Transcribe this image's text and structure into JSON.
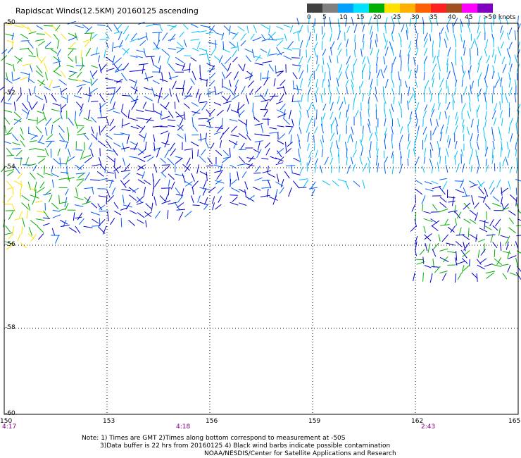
{
  "title": "Rapidscat Winds(12.5KM) 20160125 ascending",
  "legend": {
    "ticks": [
      "0",
      "5",
      "10",
      "15",
      "20",
      "25",
      "30",
      "35",
      "40",
      "45",
      ">50 knots"
    ],
    "colors": [
      "#404040",
      "#808080",
      "#00a0ff",
      "#00e0ff",
      "#00b000",
      "#ffe000",
      "#ffb000",
      "#ff6000",
      "#ff2020",
      "#a05020",
      "#ff00ff",
      "#8000c0"
    ]
  },
  "axes": {
    "lat_labels": [
      "-50",
      "-52",
      "-54",
      "-56",
      "-58",
      "-60"
    ],
    "lon_labels": [
      "150",
      "153",
      "156",
      "159",
      "162",
      "165"
    ]
  },
  "times": [
    "4:17",
    "4:18",
    "2:43"
  ],
  "notes": {
    "line1": "Note: 1) Times are GMT 2)Times along bottom correspond to measurement at -50S",
    "line2": "3)Data buffer is 22 hrs from 20160125 4) Black wind barbs indicate possible contamination",
    "line3": "NOAA/NESDIS/Center for Satellite Applications and Research"
  },
  "colors": {
    "dark_blue": "#0000d0",
    "blue": "#0060ff",
    "cyan": "#00c0ff",
    "green": "#00b000",
    "yellow": "#ffe000"
  }
}
